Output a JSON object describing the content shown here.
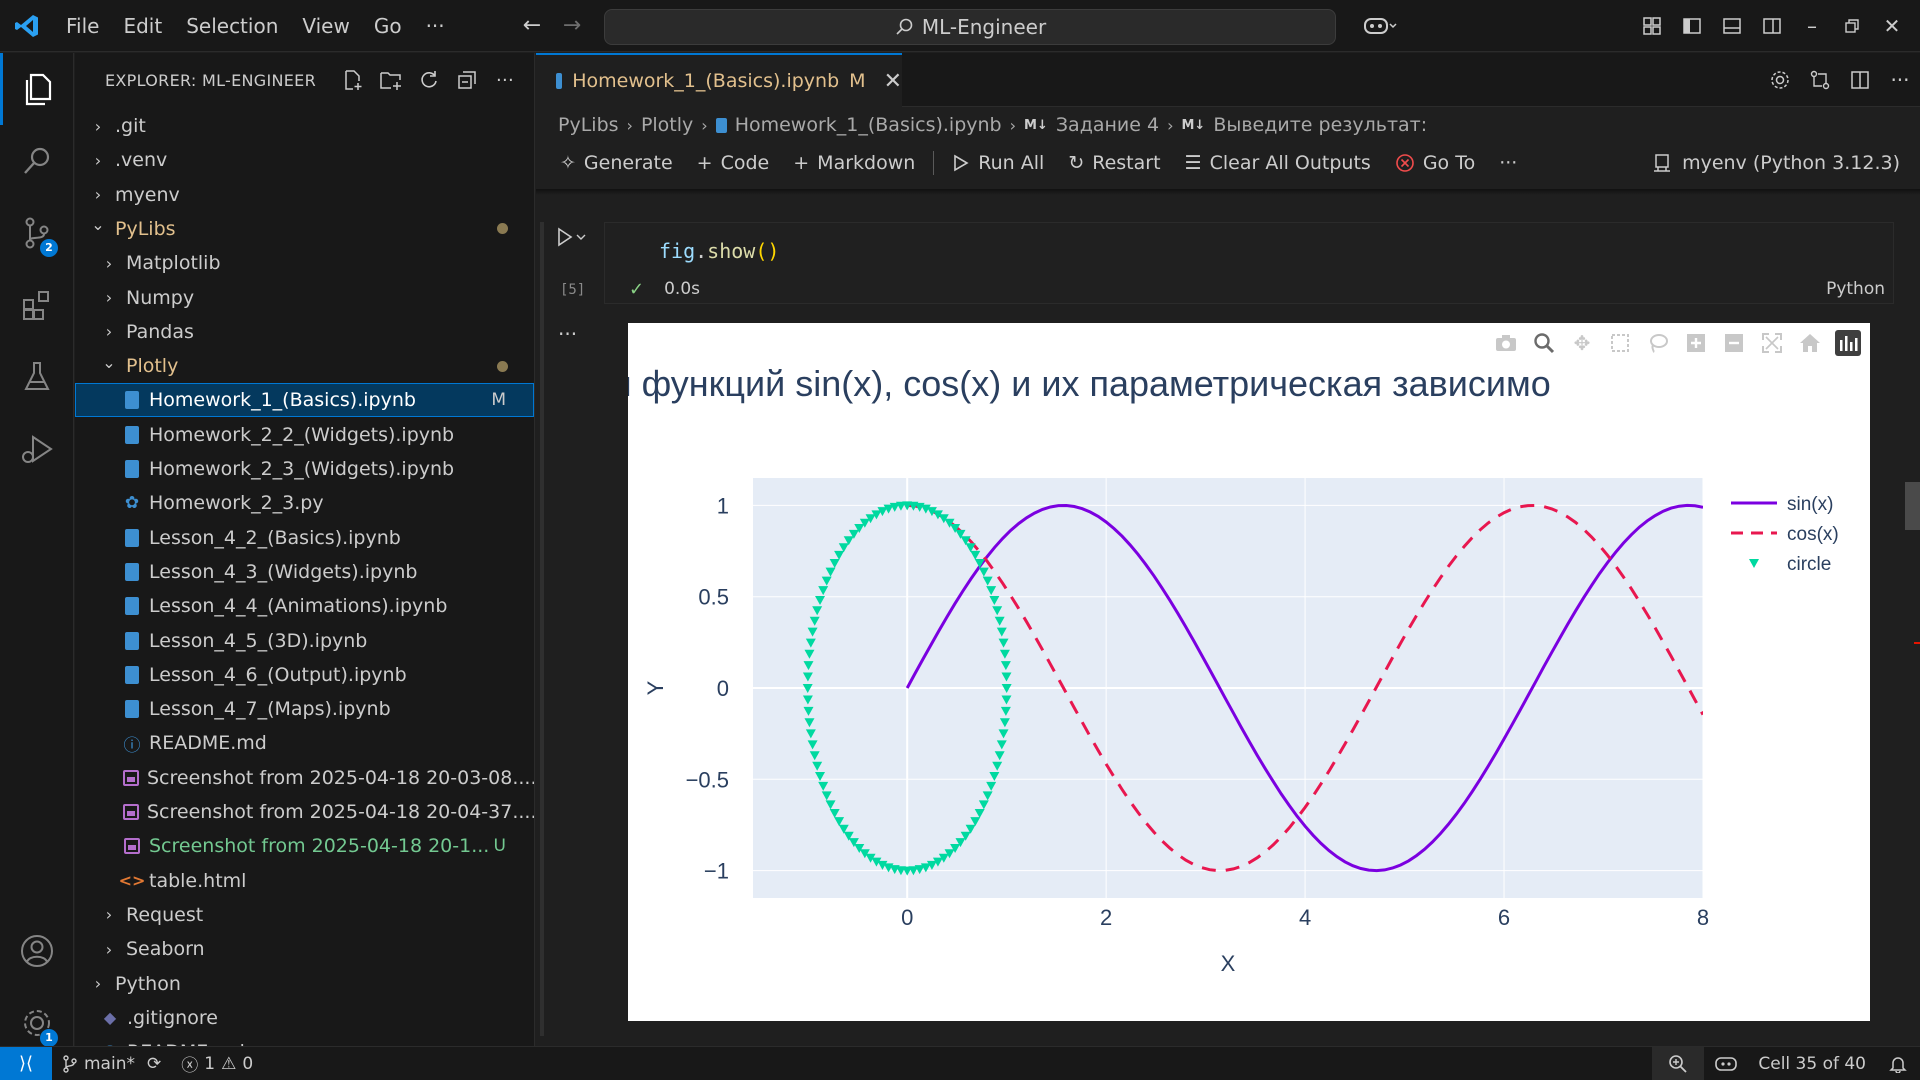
{
  "titlebar": {
    "menus": [
      "File",
      "Edit",
      "Selection",
      "View",
      "Go"
    ],
    "more": "···",
    "search_text": "ML-Engineer"
  },
  "activitybar": {
    "source_control_badge": "2",
    "settings_badge": "1"
  },
  "sidebar": {
    "title": "EXPLORER: ML-ENGINEER",
    "tree": [
      {
        "label": ".git",
        "type": "folder",
        "depth": 0,
        "expanded": false
      },
      {
        "label": ".venv",
        "type": "folder",
        "depth": 0,
        "expanded": false
      },
      {
        "label": "myenv",
        "type": "folder",
        "depth": 0,
        "expanded": false
      },
      {
        "label": "PyLibs",
        "type": "folder",
        "depth": 0,
        "expanded": true,
        "modified_dot": true,
        "color": "#e2c08d"
      },
      {
        "label": "Matplotlib",
        "type": "folder",
        "depth": 1,
        "expanded": false
      },
      {
        "label": "Numpy",
        "type": "folder",
        "depth": 1,
        "expanded": false
      },
      {
        "label": "Pandas",
        "type": "folder",
        "depth": 1,
        "expanded": false
      },
      {
        "label": "Plotly",
        "type": "folder",
        "depth": 1,
        "expanded": true,
        "modified_dot": true,
        "color": "#e2c08d"
      },
      {
        "label": "Homework_1_(Basics).ipynb",
        "type": "notebook",
        "depth": 2,
        "selected": true,
        "status": "M"
      },
      {
        "label": "Homework_2_2_(Widgets).ipynb",
        "type": "notebook",
        "depth": 2
      },
      {
        "label": "Homework_2_3_(Widgets).ipynb",
        "type": "notebook",
        "depth": 2
      },
      {
        "label": "Homework_2_3.py",
        "type": "python",
        "depth": 2
      },
      {
        "label": "Lesson_4_2_(Basics).ipynb",
        "type": "notebook",
        "depth": 2
      },
      {
        "label": "Lesson_4_3_(Widgets).ipynb",
        "type": "notebook",
        "depth": 2
      },
      {
        "label": "Lesson_4_4_(Animations).ipynb",
        "type": "notebook",
        "depth": 2
      },
      {
        "label": "Lesson_4_5_(3D).ipynb",
        "type": "notebook",
        "depth": 2
      },
      {
        "label": "Lesson_4_6_(Output).ipynb",
        "type": "notebook",
        "depth": 2
      },
      {
        "label": "Lesson_4_7_(Maps).ipynb",
        "type": "notebook",
        "depth": 2
      },
      {
        "label": "README.md",
        "type": "info",
        "depth": 2
      },
      {
        "label": "Screenshot from 2025-04-18 20-03-08....",
        "type": "image",
        "depth": 2
      },
      {
        "label": "Screenshot from 2025-04-18 20-04-37....",
        "type": "image",
        "depth": 2
      },
      {
        "label": "Screenshot from 2025-04-18 20-1...",
        "type": "image",
        "depth": 2,
        "status": "U",
        "color": "#73c991"
      },
      {
        "label": "table.html",
        "type": "html",
        "depth": 2
      },
      {
        "label": "Request",
        "type": "folder",
        "depth": 1,
        "expanded": false
      },
      {
        "label": "Seaborn",
        "type": "folder",
        "depth": 1,
        "expanded": false
      },
      {
        "label": "Python",
        "type": "folder",
        "depth": 0,
        "expanded": false
      },
      {
        "label": ".gitignore",
        "type": "gitignore",
        "depth": 0
      },
      {
        "label": "README.md",
        "type": "info",
        "depth": 0
      }
    ]
  },
  "editor": {
    "tab": {
      "label": "Homework_1_(Basics).ipynb",
      "status": "M"
    },
    "breadcrumb": [
      "PyLibs",
      "Plotly",
      "Homework_1_(Basics).ipynb",
      "Задание 4",
      "Выведите результат:"
    ],
    "toolbar": {
      "generate": "Generate",
      "code": "Code",
      "markdown": "Markdown",
      "run_all": "Run All",
      "restart": "Restart",
      "clear_outputs": "Clear All Outputs",
      "go_to": "Go To",
      "more": "···"
    },
    "kernel": "myenv (Python 3.12.3)",
    "cell": {
      "exec_count": "[5]",
      "duration": "0.0s",
      "language": "Python",
      "code": {
        "var": "fig",
        "dot": ".",
        "fn": "show",
        "parens": "()"
      }
    }
  },
  "chart_data": {
    "type": "line",
    "title": "фики функций sin(x), cos(x) и их параметрическая зависимо",
    "xlabel": "X",
    "ylabel": "Y",
    "xlim": [
      -1.55,
      8
    ],
    "ylim": [
      -1.15,
      1.15
    ],
    "xticks": [
      {
        "v": 0,
        "label": "0"
      },
      {
        "v": 2,
        "label": "2"
      },
      {
        "v": 4,
        "label": "4"
      },
      {
        "v": 6,
        "label": "6"
      },
      {
        "v": 8,
        "label": "8"
      }
    ],
    "yticks": [
      {
        "v": 1,
        "label": "1"
      },
      {
        "v": 0.5,
        "label": "0.5"
      },
      {
        "v": 0,
        "label": "0"
      },
      {
        "v": -0.5,
        "label": "−0.5"
      },
      {
        "v": -1,
        "label": "−1"
      }
    ],
    "grid": true,
    "plot_bg": "#e5ecf6",
    "legend": {
      "placement": "top-right"
    },
    "series": [
      {
        "name": "sin(x)",
        "kind": "line",
        "color": "#7b00e0",
        "dash": "solid",
        "x_range": [
          0,
          8
        ],
        "function": "sin"
      },
      {
        "name": "cos(x)",
        "kind": "line",
        "color": "#e8174f",
        "dash": "dash",
        "x_range": [
          0,
          8
        ],
        "function": "cos"
      },
      {
        "name": "circle",
        "kind": "markers",
        "color": "#00d9a0",
        "marker": "triangle-down",
        "parametric": "x=cos(t), y=sin(t)",
        "count": 100
      }
    ]
  },
  "statusbar": {
    "branch": "main*",
    "errors": "1",
    "warnings": "0",
    "cell_position": "Cell 35 of 40"
  }
}
